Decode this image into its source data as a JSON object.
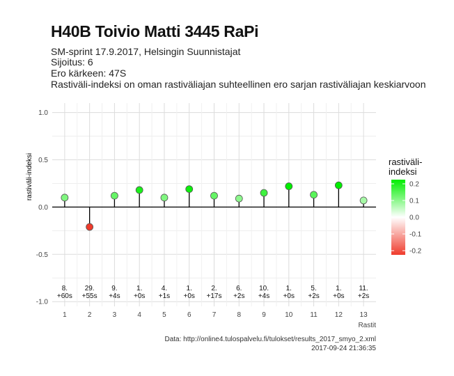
{
  "title": "H40B Toivio Matti 3445 RaPi",
  "subtitle_lines": [
    "SM-sprint 17.9.2017, Helsingin Suunnistajat",
    "Sijoitus: 6",
    "Ero kärkeen: 47S",
    "Rastiväli-indeksi on oman rastiväliajan suhteellinen ero sarjan rastiväliajan keskiarvoon"
  ],
  "caption_lines": [
    "Data: http://online4.tulospalvelu.fi/tulokset/results_2017_smyo_2.xml",
    "2017-09-24 21:36:35"
  ],
  "chart_data": {
    "type": "scatter",
    "style": "lollipop",
    "title": "H40B Toivio Matti 3445 RaPi",
    "xlabel": "Rastit",
    "ylabel": "rastiväli-indeksi",
    "ylim": [
      -1.05,
      1.1
    ],
    "yticks": [
      -1.0,
      -0.5,
      0.0,
      0.5,
      1.0
    ],
    "ytick_labels": [
      "-1.0",
      "-0.5",
      "0.0",
      "0.5",
      "1.0"
    ],
    "grid": true,
    "x": [
      1,
      2,
      3,
      4,
      5,
      6,
      7,
      8,
      9,
      10,
      11,
      12,
      13
    ],
    "values": [
      0.1,
      -0.21,
      0.12,
      0.18,
      0.1,
      0.19,
      0.12,
      0.09,
      0.15,
      0.22,
      0.13,
      0.23,
      0.07
    ],
    "annotations": [
      {
        "rank": "8.",
        "diff": "+60s"
      },
      {
        "rank": "29.",
        "diff": "+55s"
      },
      {
        "rank": "9.",
        "diff": "+4s"
      },
      {
        "rank": "1.",
        "diff": "+0s"
      },
      {
        "rank": "4.",
        "diff": "+1s"
      },
      {
        "rank": "1.",
        "diff": "+0s"
      },
      {
        "rank": "2.",
        "diff": "+17s"
      },
      {
        "rank": "6.",
        "diff": "+2s"
      },
      {
        "rank": "10.",
        "diff": "+4s"
      },
      {
        "rank": "1.",
        "diff": "+0s"
      },
      {
        "rank": "5.",
        "diff": "+2s"
      },
      {
        "rank": "1.",
        "diff": "+0s"
      },
      {
        "rank": "11.",
        "diff": "+2s"
      }
    ],
    "annotation_y": -0.91,
    "legend": {
      "title_lines": [
        "rastiväli-",
        "indeksi"
      ],
      "placement": "right",
      "min": -0.2,
      "max": 0.2,
      "ticks": [
        0.2,
        0.1,
        0.0,
        -0.1,
        -0.2
      ],
      "tick_labels": [
        "0.2",
        "0.1",
        "0.0",
        "-0.1",
        "-0.2"
      ],
      "colors": {
        "low": "#ef3b2c",
        "mid": "#ffffff",
        "high": "#00ee00"
      }
    }
  }
}
